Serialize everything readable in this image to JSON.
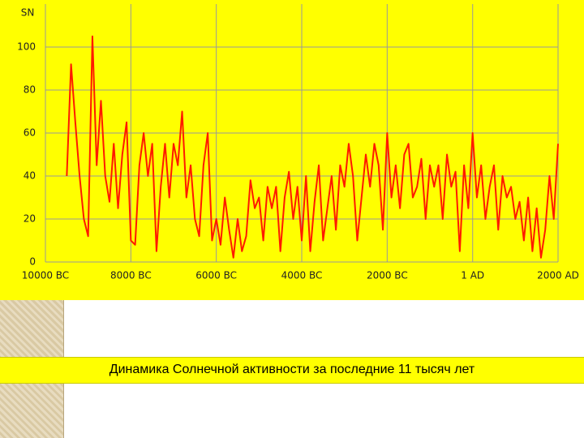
{
  "chart_data": {
    "type": "line",
    "y_label": "SN",
    "x": [
      -9500,
      -9400,
      -9300,
      -9200,
      -9100,
      -9000,
      -8900,
      -8800,
      -8700,
      -8600,
      -8500,
      -8400,
      -8300,
      -8200,
      -8100,
      -8000,
      -7900,
      -7800,
      -7700,
      -7600,
      -7500,
      -7400,
      -7300,
      -7200,
      -7100,
      -7000,
      -6900,
      -6800,
      -6700,
      -6600,
      -6500,
      -6400,
      -6300,
      -6200,
      -6100,
      -6000,
      -5900,
      -5800,
      -5700,
      -5600,
      -5500,
      -5400,
      -5300,
      -5200,
      -5100,
      -5000,
      -4900,
      -4800,
      -4700,
      -4600,
      -4500,
      -4400,
      -4300,
      -4200,
      -4100,
      -4000,
      -3900,
      -3800,
      -3700,
      -3600,
      -3500,
      -3400,
      -3300,
      -3200,
      -3100,
      -3000,
      -2900,
      -2800,
      -2700,
      -2600,
      -2500,
      -2400,
      -2300,
      -2200,
      -2100,
      -2000,
      -1900,
      -1800,
      -1700,
      -1600,
      -1500,
      -1400,
      -1300,
      -1200,
      -1100,
      -1000,
      -900,
      -800,
      -700,
      -600,
      -500,
      -400,
      -300,
      -200,
      -100,
      0,
      100,
      200,
      300,
      400,
      500,
      600,
      700,
      800,
      900,
      1000,
      1100,
      1200,
      1300,
      1400,
      1500,
      1600,
      1700,
      1800,
      1900,
      2000
    ],
    "series": [
      {
        "name": "SN",
        "color": "#ff1a00",
        "values": [
          40,
          92,
          65,
          40,
          20,
          12,
          105,
          45,
          75,
          40,
          28,
          55,
          25,
          50,
          65,
          10,
          8,
          45,
          60,
          40,
          55,
          5,
          35,
          55,
          30,
          55,
          45,
          70,
          30,
          45,
          20,
          12,
          45,
          60,
          10,
          20,
          8,
          30,
          15,
          2,
          20,
          5,
          12,
          38,
          25,
          30,
          10,
          35,
          25,
          35,
          5,
          30,
          42,
          20,
          35,
          10,
          40,
          5,
          28,
          45,
          10,
          25,
          40,
          15,
          45,
          35,
          55,
          40,
          10,
          30,
          50,
          35,
          55,
          45,
          15,
          60,
          30,
          45,
          25,
          50,
          55,
          30,
          35,
          48,
          20,
          45,
          35,
          45,
          20,
          50,
          35,
          42,
          5,
          45,
          25,
          60,
          30,
          45,
          20,
          35,
          45,
          15,
          40,
          30,
          35,
          20,
          28,
          10,
          30,
          5,
          25,
          2,
          15,
          40,
          20,
          55
        ]
      }
    ],
    "xlim": [
      -10000,
      2000
    ],
    "ylim": [
      0,
      120
    ],
    "xticks": [
      {
        "value": -10000,
        "label": "10000 BC"
      },
      {
        "value": -8000,
        "label": "8000 BC"
      },
      {
        "value": -6000,
        "label": "6000 BC"
      },
      {
        "value": -4000,
        "label": "4000 BC"
      },
      {
        "value": -2000,
        "label": "2000 BC"
      },
      {
        "value": 1,
        "label": "1 AD"
      },
      {
        "value": 2000,
        "label": "2000 AD"
      }
    ],
    "yticks": [
      0,
      20,
      40,
      60,
      80,
      100
    ],
    "grid": true
  },
  "caption": "Динамика Солнечной активности за последние 11 тысяч лет"
}
